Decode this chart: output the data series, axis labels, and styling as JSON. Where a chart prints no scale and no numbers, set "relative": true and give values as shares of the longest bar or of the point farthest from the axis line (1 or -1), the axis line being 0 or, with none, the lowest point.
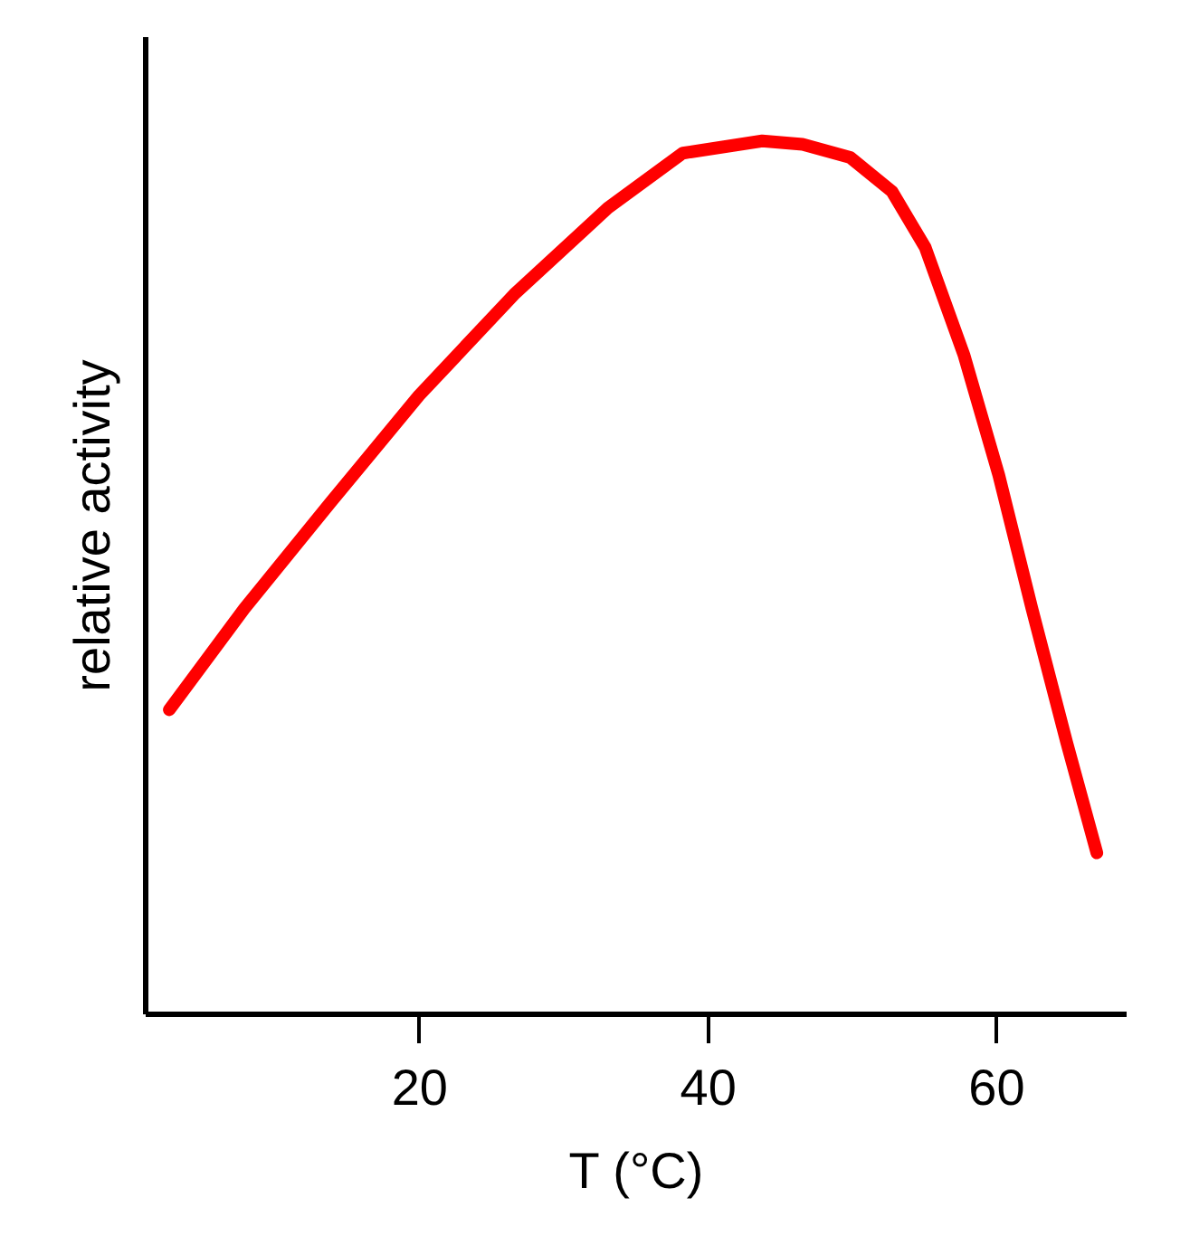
{
  "chart_data": {
    "type": "line",
    "relative": true,
    "xlabel": "T (°C)",
    "ylabel": "relative activity",
    "xlim": [
      1,
      69
    ],
    "xticks": [
      20,
      40,
      60
    ],
    "grid": false,
    "legend": false,
    "marker": "none",
    "line_style": "solid",
    "x": [
      2.7,
      7.9,
      13.9,
      20.0,
      26.6,
      33.1,
      38.3,
      43.8,
      46.6,
      49.9,
      52.8,
      55.1,
      57.8,
      60.2,
      62.5,
      64.9,
      67.0
    ],
    "series": [
      {
        "color": "#ff0000",
        "values": [
          0.348,
          0.464,
          0.586,
          0.708,
          0.824,
          0.923,
          0.986,
          1.0,
          0.996,
          0.981,
          0.942,
          0.878,
          0.754,
          0.617,
          0.464,
          0.311,
          0.184
        ]
      }
    ]
  }
}
